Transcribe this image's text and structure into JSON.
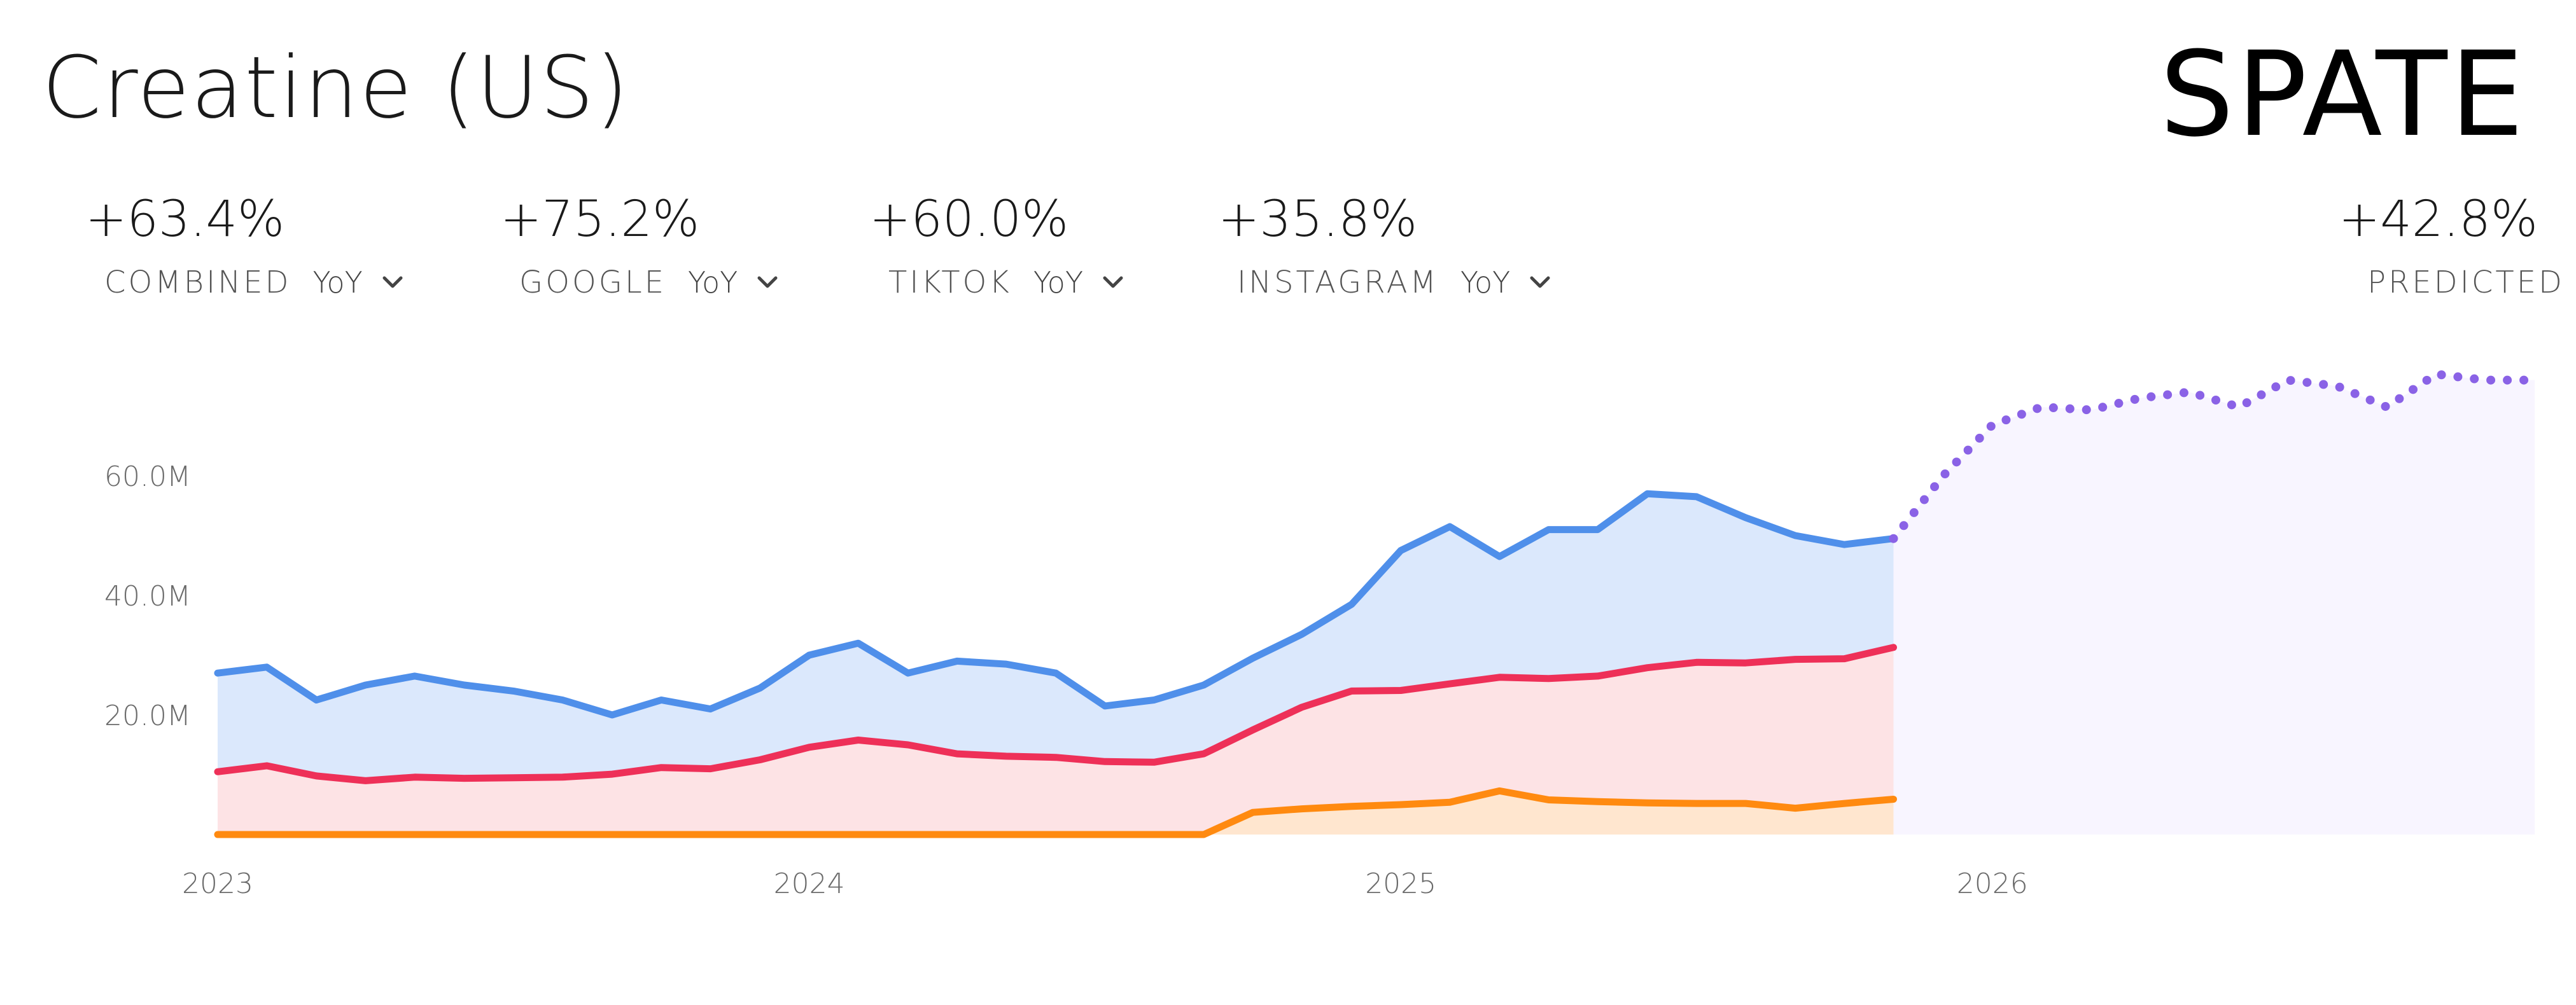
{
  "header": {
    "title": "Creatine (US)",
    "brand": "SPATE"
  },
  "metrics": [
    {
      "value": "+63.4%",
      "label": "COMBINED",
      "period": "YoY"
    },
    {
      "value": "+75.2%",
      "label": "GOOGLE",
      "period": "YoY"
    },
    {
      "value": "+60.0%",
      "label": "TIKTOK",
      "period": "YoY"
    },
    {
      "value": "+35.8%",
      "label": "INSTAGRAM",
      "period": "YoY"
    }
  ],
  "predicted": {
    "value": "+42.8%",
    "label": "PREDICTED"
  },
  "colors": {
    "combined": "#4f8fea",
    "combined_fill": "#dbe8fc",
    "google": "#ee3058",
    "google_fill": "#fde3e5",
    "tiktok": "#ff8a10",
    "tiktok_fill": "#ffe6cf",
    "predicted": "#8a62e6",
    "predicted_fill": "#f8f5ff"
  },
  "chart_data": {
    "type": "area",
    "title": "Creatine (US)",
    "xlabel": "",
    "ylabel": "",
    "x_ticks": [
      "2023",
      "2024",
      "2025",
      "2026"
    ],
    "x_tick_values": [
      2023.0,
      2024.0,
      2025.0,
      2026.0
    ],
    "y_ticks": [
      20000000,
      40000000,
      60000000
    ],
    "y_tick_labels": [
      "20.0M",
      "40.0M",
      "60.0M"
    ],
    "xlim": [
      2023.0,
      2026.92
    ],
    "ylim": [
      0,
      80000000
    ],
    "grid": false,
    "series": [
      {
        "name": "Combined",
        "x": [
          2023.0,
          2023.083,
          2023.167,
          2023.25,
          2023.333,
          2023.417,
          2023.5,
          2023.583,
          2023.667,
          2023.75,
          2023.833,
          2023.917,
          2024.0,
          2024.083,
          2024.167,
          2024.25,
          2024.333,
          2024.417,
          2024.5,
          2024.583,
          2024.667,
          2024.75,
          2024.833,
          2024.917,
          2025.0,
          2025.083,
          2025.167,
          2025.25,
          2025.333,
          2025.417,
          2025.5,
          2025.583,
          2025.667,
          2025.75,
          2025.833
        ],
        "values": [
          27000000,
          28000000,
          22500000,
          25000000,
          26500000,
          25000000,
          24000000,
          22500000,
          20000000,
          22500000,
          21000000,
          24500000,
          30000000,
          32000000,
          27000000,
          29000000,
          28500000,
          27000000,
          21500000,
          22500000,
          25000000,
          29500000,
          33500000,
          38500000,
          47500000,
          51500000,
          46500000,
          51000000,
          51000000,
          57000000,
          56500000,
          53000000,
          50000000,
          48500000,
          49500000
        ]
      },
      {
        "name": "Google",
        "x": [
          2023.0,
          2023.083,
          2023.167,
          2023.25,
          2023.333,
          2023.417,
          2023.5,
          2023.583,
          2023.667,
          2023.75,
          2023.833,
          2023.917,
          2024.0,
          2024.083,
          2024.167,
          2024.25,
          2024.333,
          2024.417,
          2024.5,
          2024.583,
          2024.667,
          2024.75,
          2024.833,
          2024.917,
          2025.0,
          2025.083,
          2025.167,
          2025.25,
          2025.333,
          2025.417,
          2025.5,
          2025.583,
          2025.667,
          2025.75,
          2025.833
        ],
        "values": [
          10500000,
          11500000,
          9800000,
          9000000,
          9600000,
          9400000,
          9500000,
          9600000,
          10100000,
          11200000,
          11000000,
          12500000,
          14600000,
          15800000,
          15000000,
          13500000,
          13100000,
          12900000,
          12200000,
          12100000,
          13500000,
          17500000,
          21300000,
          24000000,
          24100000,
          25200000,
          26300000,
          26100000,
          26500000,
          27900000,
          28800000,
          28700000,
          29300000,
          29400000,
          31300000
        ]
      },
      {
        "name": "TikTok",
        "x": [
          2023.0,
          2023.083,
          2023.167,
          2023.25,
          2023.333,
          2023.417,
          2023.5,
          2023.583,
          2023.667,
          2023.75,
          2023.833,
          2023.917,
          2024.0,
          2024.083,
          2024.167,
          2024.25,
          2024.333,
          2024.417,
          2024.5,
          2024.583,
          2024.667,
          2024.75,
          2024.833,
          2024.917,
          2025.0,
          2025.083,
          2025.167,
          2025.25,
          2025.333,
          2025.417,
          2025.5,
          2025.583,
          2025.667,
          2025.75,
          2025.833
        ],
        "values": [
          0,
          0,
          0,
          0,
          0,
          0,
          0,
          0,
          0,
          0,
          0,
          0,
          0,
          0,
          0,
          0,
          0,
          0,
          0,
          0,
          0,
          3700000,
          4300000,
          4700000,
          5000000,
          5400000,
          7300000,
          5800000,
          5500000,
          5300000,
          5200000,
          5200000,
          4400000,
          5200000,
          5900000
        ]
      },
      {
        "name": "Predicted",
        "style": "dotted",
        "x": [
          2025.833,
          2025.917,
          2026.0,
          2026.083,
          2026.167,
          2026.25,
          2026.333,
          2026.417,
          2026.5,
          2026.583,
          2026.667,
          2026.75,
          2026.833,
          2026.917
        ],
        "values": [
          49500000,
          60000000,
          68500000,
          71500000,
          71000000,
          73000000,
          74000000,
          71500000,
          76000000,
          75000000,
          71500000,
          77000000,
          76000000,
          76000000
        ]
      }
    ]
  }
}
